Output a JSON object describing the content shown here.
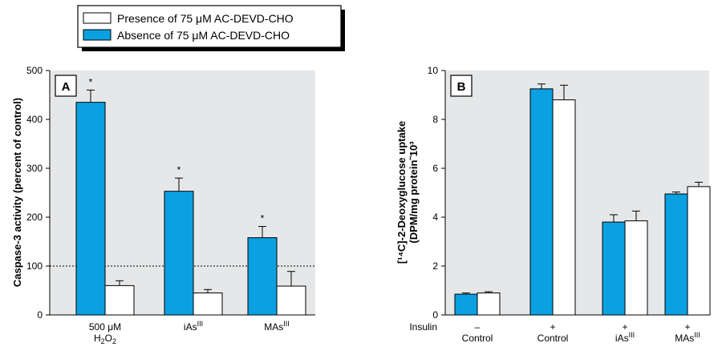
{
  "colors": {
    "blue": "#0aa1e2",
    "white": "#ffffff",
    "panel_bg": "#e6e7e8",
    "outline": "#000000"
  },
  "legend": {
    "presence": "Presence of 75 μM AC-DEVD-CHO",
    "absence": "Absence of 75 μM AC-DEVD-CHO"
  },
  "chart_data": [
    {
      "type": "bar",
      "panel": "A",
      "ylabel": "Caspase-3 activity (percent of control)",
      "ylim": [
        0,
        500
      ],
      "yticks": [
        0,
        100,
        200,
        300,
        400,
        500
      ],
      "reference_line": 100,
      "categories": [
        {
          "main": "500 μM",
          "line2": "H",
          "sub": "2",
          "mid": "O",
          "sub2": "2"
        },
        {
          "main": "iAs",
          "sup": "III"
        },
        {
          "main": "MAs",
          "sup": "III"
        }
      ],
      "series": [
        {
          "name": "Absence of 75 μM AC-DEVD-CHO",
          "color": "blue",
          "values": [
            435,
            253,
            158
          ],
          "errors": [
            25,
            27,
            23
          ],
          "stars": [
            "*",
            "*",
            "*"
          ]
        },
        {
          "name": "Presence of 75 μM AC-DEVD-CHO",
          "color": "white",
          "values": [
            60,
            45,
            59
          ],
          "errors": [
            10,
            7,
            30
          ]
        }
      ]
    },
    {
      "type": "bar",
      "panel": "B",
      "ylabel_line1": "[¹⁴C]-2-Deoxyglucose uptake",
      "ylabel_line2": "(DPM/mg protein˜10³",
      "ylim": [
        0,
        10
      ],
      "yticks": [
        0,
        2,
        4,
        6,
        8,
        10
      ],
      "row_label": "Insulin",
      "categories": [
        {
          "sign": "–",
          "main": "Control"
        },
        {
          "sign": "+",
          "main": "Control"
        },
        {
          "sign": "+",
          "main": "iAs",
          "sup": "III"
        },
        {
          "sign": "+",
          "main": "MAs",
          "sup": "III"
        }
      ],
      "series": [
        {
          "name": "Absence of 75 μM AC-DEVD-CHO",
          "color": "blue",
          "values": [
            0.85,
            9.25,
            3.8,
            4.95
          ],
          "errors": [
            0.05,
            0.2,
            0.3,
            0.08
          ]
        },
        {
          "name": "Presence of 75 μM AC-DEVD-CHO",
          "color": "white",
          "values": [
            0.9,
            8.8,
            3.85,
            5.25
          ],
          "errors": [
            0.05,
            0.6,
            0.4,
            0.18
          ]
        }
      ]
    }
  ]
}
